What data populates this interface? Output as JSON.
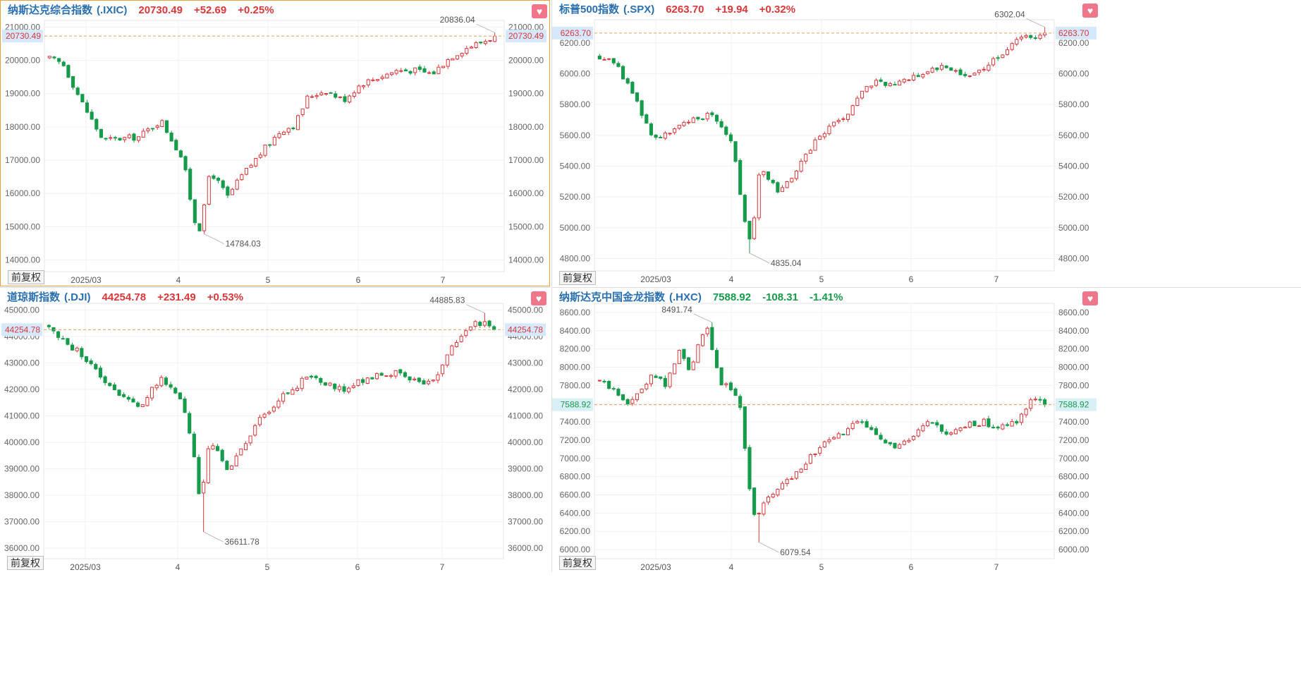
{
  "panels": [
    {
      "name": "纳斯达克综合指数",
      "code": "(.IXIC)",
      "price": "20730.49",
      "change": "+52.69",
      "change_pct": "+0.25%",
      "trend": "up",
      "fav_icon": "heart-icon",
      "adjust_button": "前复权",
      "current_label": "20730.49",
      "high_label": "20836.04",
      "low_label": "14784.03",
      "price_label_color": "#d9383a",
      "price_tag_bg": "#d6e8fb"
    },
    {
      "name": "标普500指数",
      "code": "(.SPX)",
      "price": "6263.70",
      "change": "+19.94",
      "change_pct": "+0.32%",
      "trend": "up",
      "fav_icon": "heart-icon",
      "adjust_button": "前复权",
      "current_label": "6263.70",
      "high_label": "6302.04",
      "low_label": "4835.04",
      "price_label_color": "#d9383a",
      "price_tag_bg": "#d6e8fb"
    },
    {
      "name": "道琼斯指数",
      "code": "(.DJI)",
      "price": "44254.78",
      "change": "+231.49",
      "change_pct": "+0.53%",
      "trend": "up",
      "fav_icon": "heart-icon",
      "adjust_button": "前复权",
      "current_label": "44254.78",
      "high_label": "44885.83",
      "low_label": "36611.78",
      "price_label_color": "#d9383a",
      "price_tag_bg": "#d6e8fb"
    },
    {
      "name": "纳斯达克中国金龙指数",
      "code": "(.HXC)",
      "price": "7588.92",
      "change": "-108.31",
      "change_pct": "-1.41%",
      "trend": "down",
      "fav_icon": "heart-icon",
      "adjust_button": "前复权",
      "current_label": "7588.92",
      "high_label": "8491.74",
      "low_label": "6079.54",
      "price_label_color": "#159b4a",
      "price_tag_bg": "#d9f0f6"
    }
  ],
  "chart_data": [
    {
      "type": "candlestick",
      "title": "纳斯达克综合指数 (.IXIC)",
      "x_tick_labels": [
        "2025/03",
        "4",
        "5",
        "6",
        "7"
      ],
      "y_tick_labels": [
        "14000.00",
        "15000.00",
        "16000.00",
        "17000.00",
        "18000.00",
        "19000.00",
        "20000.00",
        "21000.00"
      ],
      "ylim": [
        13650,
        21200
      ],
      "y_ticks": [
        14000,
        15000,
        16000,
        17000,
        18000,
        19000,
        20000,
        21000
      ],
      "grid": true,
      "current_price": 20730.49,
      "high_marker": 20836.04,
      "low_marker": 14784.03,
      "up_color": "#d9383a",
      "down_color": "#159b4a",
      "anchors": [
        [
          20100,
          0.22
        ],
        [
          19800,
          0.1
        ],
        [
          18700,
          0.9
        ],
        [
          17700,
          0.26
        ],
        [
          18150,
          0.33
        ],
        [
          17200,
          0.44
        ],
        [
          14784,
          0.57
        ],
        [
          16500,
          0.64
        ],
        [
          16200,
          0.67
        ],
        [
          17400,
          0.75
        ],
        [
          18000,
          0.81
        ],
        [
          18850,
          0.9
        ],
        [
          19300,
          1.0
        ],
        [
          19500,
          1.04
        ],
        [
          19800,
          1.14
        ],
        [
          20250,
          1.27
        ],
        [
          20400,
          1.33
        ],
        [
          20700,
          1.36
        ]
      ],
      "anchor_x": [
        0.0,
        0.03,
        0.08,
        0.14,
        0.22,
        0.29,
        0.33,
        0.37,
        0.4,
        0.45,
        0.5,
        0.55,
        0.62,
        0.68,
        0.78,
        0.88,
        0.95,
        1.0
      ]
    },
    {
      "type": "candlestick",
      "title": "标普500指数 (.SPX)",
      "x_tick_labels": [
        "2025/03",
        "4",
        "5",
        "6",
        "7"
      ],
      "y_tick_labels": [
        "4800.00",
        "5000.00",
        "5200.00",
        "5400.00",
        "5600.00",
        "5800.00",
        "6000.00",
        "6200.00"
      ],
      "ylim": [
        4720,
        6350
      ],
      "y_ticks": [
        4800,
        5000,
        5200,
        5400,
        5600,
        5800,
        6000,
        6200
      ],
      "grid": true,
      "current_price": 6263.7,
      "high_marker": 6302.04,
      "low_marker": 4835.04,
      "up_color": "#d9383a",
      "down_color": "#159b4a"
    },
    {
      "type": "candlestick",
      "title": "道琼斯指数 (.DJI)",
      "x_tick_labels": [
        "2025/03",
        "4",
        "5",
        "6",
        "7"
      ],
      "y_tick_labels": [
        "36000.00",
        "37000.00",
        "38000.00",
        "39000.00",
        "40000.00",
        "41000.00",
        "42000.00",
        "43000.00",
        "44000.00",
        "45000.00"
      ],
      "ylim": [
        35600,
        45250
      ],
      "y_ticks": [
        36000,
        37000,
        38000,
        39000,
        40000,
        41000,
        42000,
        43000,
        44000,
        45000
      ],
      "grid": true,
      "current_price": 44254.78,
      "high_marker": 44885.83,
      "low_marker": 36611.78,
      "up_color": "#d9383a",
      "down_color": "#159b4a"
    },
    {
      "type": "candlestick",
      "title": "纳斯达克中国金龙指数 (.HXC)",
      "x_tick_labels": [
        "2025/03",
        "4",
        "5",
        "6",
        "7"
      ],
      "y_tick_labels": [
        "6000.00",
        "6200.00",
        "6400.00",
        "6600.00",
        "6800.00",
        "7000.00",
        "7200.00",
        "7400.00",
        "7600.00",
        "7800.00",
        "8000.00",
        "8200.00",
        "8400.00",
        "8600.00"
      ],
      "ylim": [
        5900,
        8700
      ],
      "y_ticks": [
        6000,
        6200,
        6400,
        6600,
        6800,
        7000,
        7200,
        7400,
        7600,
        7800,
        8000,
        8200,
        8400,
        8600
      ],
      "grid": true,
      "current_price": 7588.92,
      "high_marker": 8491.74,
      "low_marker": 6079.54,
      "up_color": "#d9383a",
      "down_color": "#159b4a"
    }
  ]
}
